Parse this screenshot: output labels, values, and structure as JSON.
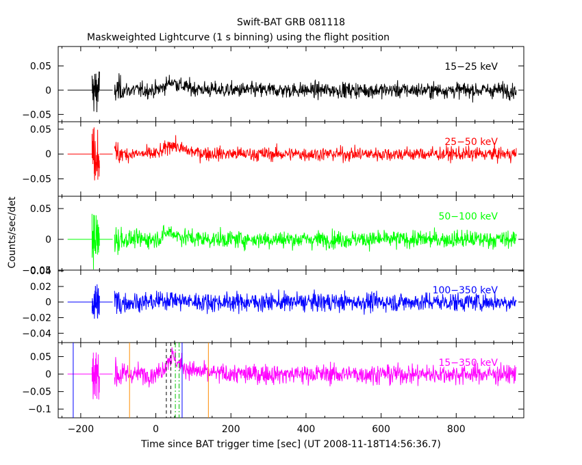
{
  "chart_data": {
    "type": "line",
    "title": "Swift-BAT GRB 081118",
    "subtitle": "Maskweighted Lightcurve (1 s binning) using the flight position",
    "xlabel": "Time since BAT trigger time [sec] (UT 2008-11-18T14:56:36.7)",
    "ylabel": "Counts/sec/det",
    "xlim": [
      -260,
      980
    ],
    "x_ticks": [
      -200,
      0,
      200,
      400,
      600,
      800
    ],
    "x_tick_labels": [
      "−200",
      "0",
      "200",
      "400",
      "600",
      "800"
    ],
    "panels": [
      {
        "series_name": "15−25 keV",
        "color": "#000000",
        "ylim": [
          -0.065,
          0.09
        ],
        "y_ticks": [
          0.05,
          0,
          -0.05
        ],
        "y_tick_labels": [
          "0.05",
          "0",
          "−0.05"
        ],
        "noise": 0.008,
        "pulse": {
          "peak": 0.018,
          "center": 45,
          "rise": 25,
          "decay": 35
        },
        "early_spike": 0.05
      },
      {
        "series_name": "25−50 keV",
        "color": "#ff0000",
        "ylim": [
          -0.085,
          0.065
        ],
        "y_ticks": [
          0.05,
          0,
          -0.05
        ],
        "y_tick_labels": [
          "0.05",
          "0",
          "−0.05"
        ],
        "noise": 0.007,
        "pulse": {
          "peak": 0.02,
          "center": 45,
          "rise": 25,
          "decay": 35
        },
        "early_spike": 0.06
      },
      {
        "series_name": "50−100 keV",
        "color": "#00ff00",
        "ylim": [
          -0.05,
          0.07
        ],
        "y_ticks": [
          0.05,
          0,
          -0.05
        ],
        "y_tick_labels": [
          "0.05",
          "0",
          "−0.05"
        ],
        "noise": 0.007,
        "pulse": {
          "peak": 0.012,
          "center": 40,
          "rise": 25,
          "decay": 30
        },
        "early_spike": 0.05
      },
      {
        "series_name": "100−350 keV",
        "color": "#0000ff",
        "ylim": [
          -0.052,
          0.041
        ],
        "y_ticks": [
          0.04,
          0.02,
          0,
          -0.02,
          -0.04
        ],
        "y_tick_labels": [
          "0.04",
          "0.02",
          "0",
          "−0.02",
          "−0.04"
        ],
        "noise": 0.006,
        "pulse": {
          "peak": 0.004,
          "center": 40,
          "rise": 25,
          "decay": 30
        },
        "early_spike": 0.03
      },
      {
        "series_name": "15−350 keV",
        "color": "#ff00ff",
        "ylim": [
          -0.125,
          0.09
        ],
        "y_ticks": [
          0.05,
          0,
          -0.05,
          -0.1
        ],
        "y_tick_labels": [
          "0.05",
          "0",
          "−0.05",
          "−0.1"
        ],
        "noise": 0.014,
        "pulse": {
          "peak": 0.05,
          "center": 45,
          "rise": 25,
          "decay": 35
        },
        "early_spike": 0.085
      }
    ],
    "baseline_segments": [
      {
        "x_start": -235,
        "x_end": -168
      },
      {
        "x_start": -150,
        "x_end": -115
      }
    ],
    "burst_start": -110,
    "burst_end": 960,
    "early_burst": [
      -170,
      -150
    ],
    "interval_markers": [
      {
        "x": -220,
        "color": "#0000ff",
        "style": "solid"
      },
      {
        "x": 70,
        "color": "#0000ff",
        "style": "solid"
      },
      {
        "x": -70,
        "color": "#ff8c00",
        "style": "solid"
      },
      {
        "x": 140,
        "color": "#ff8c00",
        "style": "solid"
      },
      {
        "x": 28,
        "color": "#000000",
        "style": "dashed"
      },
      {
        "x": 40,
        "color": "#000000",
        "style": "dashed"
      },
      {
        "x": 52,
        "color": "#00c000",
        "style": "dashdot"
      },
      {
        "x": 62,
        "color": "#00c000",
        "style": "dashdot"
      }
    ]
  }
}
